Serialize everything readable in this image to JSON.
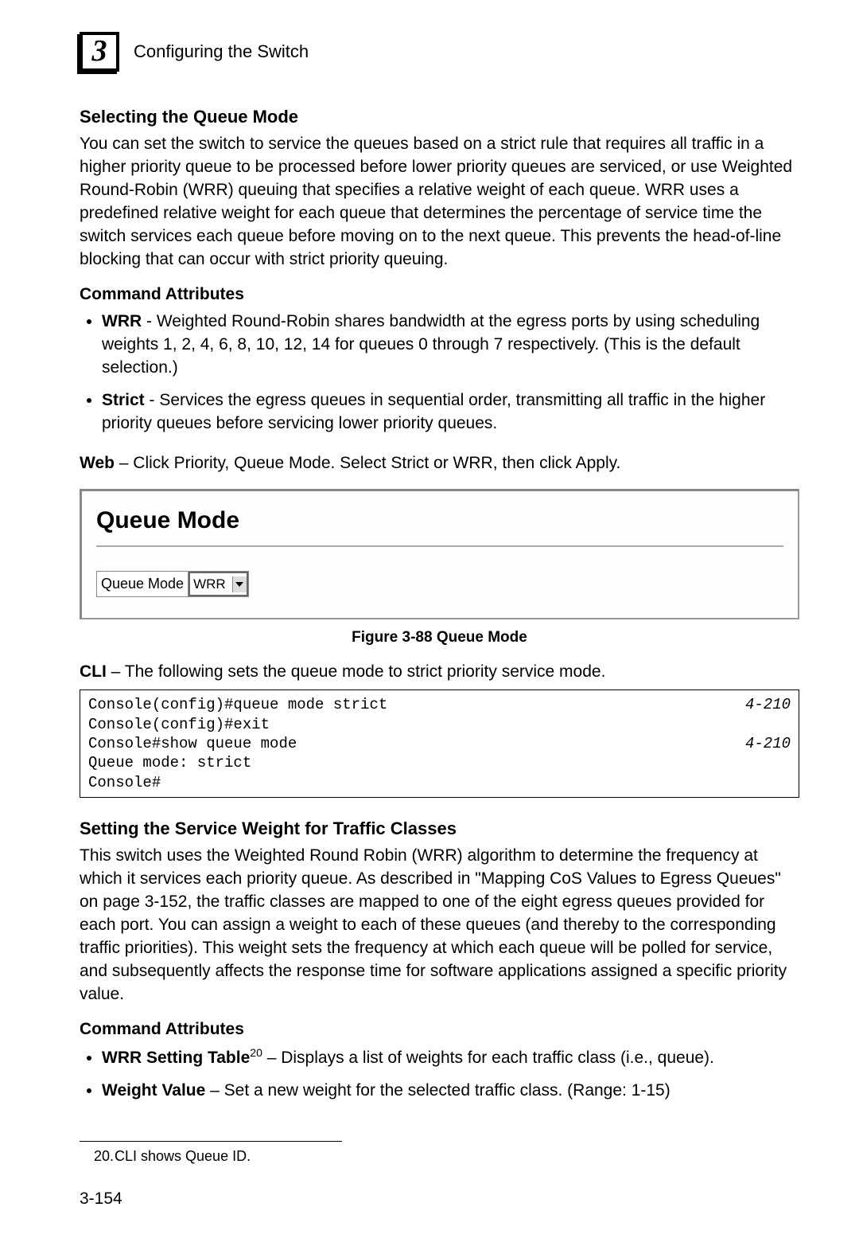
{
  "header": {
    "chapter_number": "3",
    "title": "Configuring the Switch"
  },
  "section1": {
    "heading": "Selecting the Queue Mode",
    "body": "You can set the switch to service the queues based on a strict rule that requires all traffic in a higher priority queue to be processed before lower priority queues are serviced, or use Weighted Round-Robin (WRR) queuing that specifies a relative weight of each queue. WRR uses a predefined relative weight for each queue that determines the percentage of service time the switch services each queue before moving on to the next queue. This prevents the head-of-line blocking that can occur with strict priority queuing.",
    "cmd_attr_heading": "Command Attributes",
    "bullets": [
      {
        "label": "WRR",
        "text": " - Weighted Round-Robin shares bandwidth at the egress ports by using scheduling weights 1, 2, 4, 6, 8, 10, 12, 14 for queues 0 through 7 respectively. (This is the default selection.)"
      },
      {
        "label": "Strict",
        "text": " - Services the egress queues in sequential order, transmitting all traffic in the higher priority queues before servicing lower priority queues."
      }
    ],
    "web_label": "Web",
    "web_text": " – Click Priority, Queue Mode. Select Strict or WRR, then click Apply."
  },
  "figure": {
    "title": "Queue Mode",
    "field_label": "Queue Mode",
    "field_value": "WRR",
    "caption": "Figure 3-88   Queue Mode"
  },
  "cli": {
    "label": "CLI",
    "text": " – The following sets the queue mode to strict priority service mode.",
    "lines": [
      {
        "left": "Console(config)#queue mode strict",
        "right": "4-210"
      },
      {
        "left": "Console(config)#exit",
        "right": ""
      },
      {
        "left": "Console#show queue mode",
        "right": "4-210"
      },
      {
        "left": "",
        "right": ""
      },
      {
        "left": "Queue mode: strict",
        "right": ""
      },
      {
        "left": "Console#",
        "right": ""
      }
    ]
  },
  "section2": {
    "heading": "Setting the Service Weight for Traffic Classes",
    "body": "This switch uses the Weighted Round Robin (WRR) algorithm to determine the frequency at which it services each priority queue. As described in \"Mapping CoS Values to Egress Queues\" on page 3-152, the traffic classes are mapped to one of the eight egress queues provided for each port. You can assign a weight to each of these queues (and thereby to the corresponding traffic priorities). This weight sets the frequency at which each queue will be polled for service, and subsequently affects the response time for software applications assigned a specific priority value.",
    "cmd_attr_heading": "Command Attributes",
    "bullets": [
      {
        "label": "WRR Setting Table",
        "sup": "20",
        "text": " – Displays a list of weights for each traffic class (i.e., queue)."
      },
      {
        "label": "Weight Value",
        "sup": "",
        "text": " – Set a new weight for the selected traffic class. (Range: 1-15)"
      }
    ]
  },
  "footnote": {
    "num": "20.",
    "text": "CLI shows Queue ID."
  },
  "page_number": "3-154"
}
